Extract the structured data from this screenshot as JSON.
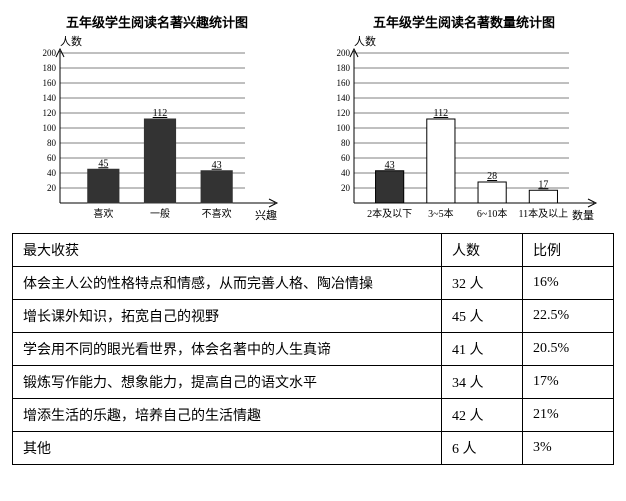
{
  "chart_left": {
    "type": "bar",
    "title": "五年级学生阅读名著兴趣统计图",
    "y_label": "人数",
    "x_label": "兴趣",
    "categories": [
      "喜欢",
      "一般",
      "不喜欢"
    ],
    "values": [
      45,
      112,
      43
    ],
    "bar_labels": [
      "45",
      "112",
      "43"
    ],
    "bar_colors": [
      "#333333",
      "#333333",
      "#333333"
    ],
    "bar_fill": [
      "solid",
      "solid",
      "hatched"
    ],
    "ylim": [
      0,
      200
    ],
    "ytick_step": 20,
    "yticks": [
      20,
      40,
      60,
      80,
      100,
      120,
      140,
      160,
      180,
      200
    ],
    "background_color": "#ffffff",
    "grid_color": "#000000",
    "axis_color": "#000000",
    "label_fontsize": 11,
    "title_fontsize": 13,
    "bar_width": 0.55
  },
  "chart_right": {
    "type": "bar",
    "title": "五年级学生阅读名著数量统计图",
    "y_label": "人数",
    "x_label": "数量",
    "categories": [
      "2本及以下",
      "3~5本",
      "6~10本",
      "11本及以上"
    ],
    "values": [
      43,
      112,
      28,
      17
    ],
    "bar_labels": [
      "43",
      "112",
      "28",
      "17"
    ],
    "bar_colors": [
      "#333333",
      "#ffffff",
      "#ffffff",
      "#ffffff"
    ],
    "bar_outline": "#000000",
    "ylim": [
      0,
      200
    ],
    "ytick_step": 20,
    "yticks": [
      20,
      40,
      60,
      80,
      100,
      120,
      140,
      160,
      180,
      200
    ],
    "background_color": "#ffffff",
    "grid_color": "#000000",
    "axis_color": "#000000",
    "label_fontsize": 11,
    "title_fontsize": 13,
    "bar_width": 0.55
  },
  "table": {
    "headers": [
      "最大收获",
      "人数",
      "比例"
    ],
    "rows": [
      [
        "体会主人公的性格特点和情感，从而完善人格、陶冶情操",
        "32 人",
        "16%"
      ],
      [
        "增长课外知识，拓宽自己的视野",
        "45 人",
        "22.5%"
      ],
      [
        "学会用不同的眼光看世界，体会名著中的人生真谛",
        "41 人",
        "20.5%"
      ],
      [
        "锻炼写作能力、想象能力，提高自己的语文水平",
        "34 人",
        "17%"
      ],
      [
        "增添生活的乐趣，培养自己的生活情趣",
        "42 人",
        "21%"
      ],
      [
        "其他",
        "6 人",
        "3%"
      ]
    ]
  }
}
